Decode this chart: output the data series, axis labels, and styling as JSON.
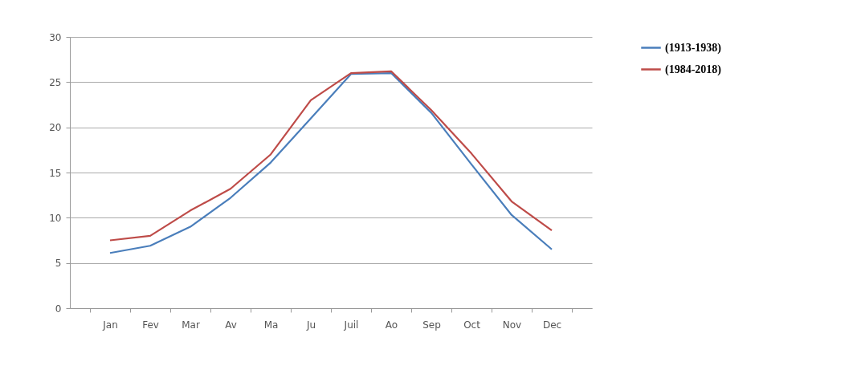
{
  "chart_data": {
    "type": "line",
    "categories": [
      "Jan",
      "Fev",
      "Mar",
      "Av",
      "Ma",
      "Ju",
      "Juil",
      "Ao",
      "Sep",
      "Oct",
      "Nov",
      "Dec"
    ],
    "series": [
      {
        "name": "(1913-1938)",
        "color": "#4a7ebb",
        "values": [
          6.1,
          6.9,
          9,
          12.2,
          16.1,
          21,
          25.9,
          26,
          21.6,
          15.9,
          10.3,
          6.5
        ]
      },
      {
        "name": "(1984-2018)",
        "color": "#be4b48",
        "values": [
          7.5,
          8.0,
          10.8,
          13.2,
          17,
          23,
          26,
          26.2,
          21.9,
          17.1,
          11.8,
          8.6
        ]
      }
    ],
    "ylim": [
      0,
      30
    ],
    "yticks": [
      0,
      5,
      10,
      15,
      20,
      25,
      30
    ],
    "grid": "y",
    "legend": "right"
  }
}
